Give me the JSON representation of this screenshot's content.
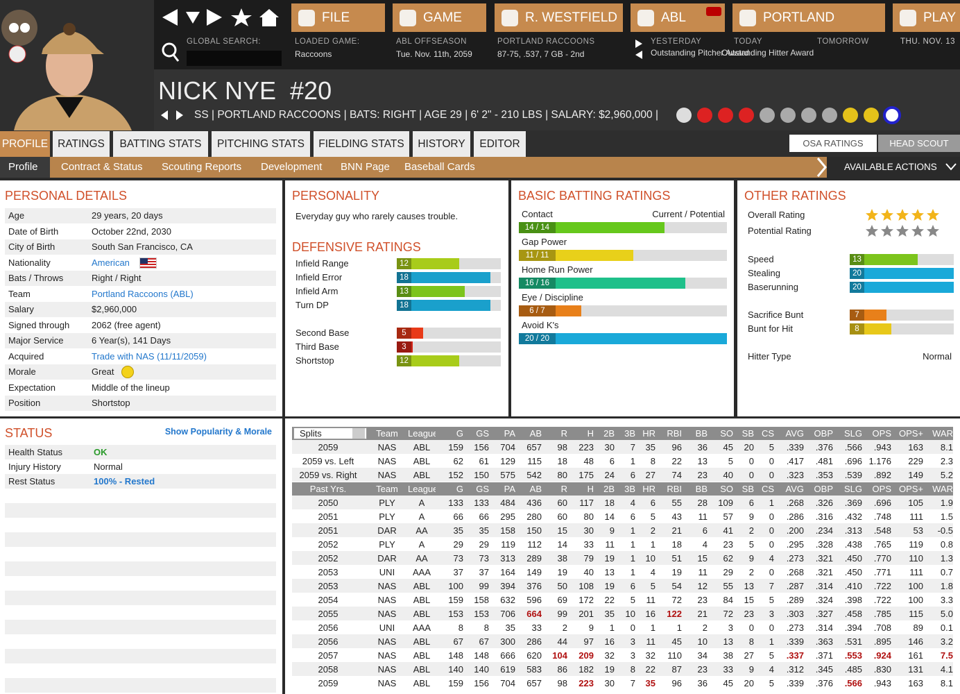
{
  "header": {
    "nav_buttons": [
      "FILE",
      "GAME",
      "R. WESTFIELD",
      "ABL",
      "PORTLAND",
      "PLAY"
    ],
    "global_search": "GLOBAL SEARCH:",
    "info": [
      {
        "label": "LOADED GAME:",
        "value": "Raccoons"
      },
      {
        "label": "ABL OFFSEASON",
        "value": "Tue. Nov. 11th, 2059"
      },
      {
        "label": "PORTLAND RACCOONS",
        "value": "87-75, .537, 7 GB - 2nd"
      }
    ],
    "events": [
      {
        "label": "YESTERDAY",
        "value": "Outstanding Pitcher Award"
      },
      {
        "label": "TODAY",
        "value": "Outstanding Hitter Award"
      },
      {
        "label": "TOMORROW"
      }
    ],
    "date": "THU. NOV. 13"
  },
  "player": {
    "name": "NICK NYE  #20",
    "info": "SS | PORTLAND RACCOONS | BATS: RIGHT | AGE 29 | 6' 2\" - 210 LBS | SALARY: $2,960,000 |"
  },
  "tabs": [
    "PROFILE",
    "RATINGS",
    "BATTING STATS",
    "PITCHING STATS",
    "FIELDING STATS",
    "HISTORY",
    "EDITOR"
  ],
  "right_tabs": [
    "OSA RATINGS",
    "HEAD SCOUT"
  ],
  "subnav": [
    "Profile",
    "Contract & Status",
    "Scouting Reports",
    "Development",
    "BNN Page",
    "Baseball Cards"
  ],
  "actions": "AVAILABLE ACTIONS",
  "personal": {
    "title": "PERSONAL DETAILS",
    "rows": [
      {
        "label": "Age",
        "value": "29 years, 20 days"
      },
      {
        "label": "Date of Birth",
        "value": "October 22nd, 2030"
      },
      {
        "label": "City of Birth",
        "value": "South San Francisco, CA"
      },
      {
        "label": "Nationality",
        "value": "American",
        "style": "link"
      },
      {
        "label": "Bats / Throws",
        "value": "Right / Right"
      },
      {
        "label": "Team",
        "value": "Portland Raccoons (ABL)",
        "style": "link"
      },
      {
        "label": "Salary",
        "value": "$2,960,000"
      },
      {
        "label": "Signed through",
        "value": "2062 (free agent)"
      },
      {
        "label": "Major Service",
        "value": "6 Year(s), 141 Days"
      },
      {
        "label": "Acquired",
        "value": "Trade with NAS (11/11/2059)",
        "style": "link"
      },
      {
        "label": "Morale",
        "value": "Great"
      },
      {
        "label": "Expectation",
        "value": "Middle of the lineup"
      },
      {
        "label": "Position",
        "value": "Shortstop"
      }
    ]
  },
  "personality": {
    "title": "PERSONALITY",
    "text": "Everyday guy who rarely causes trouble."
  },
  "defensive": {
    "title": "DEFENSIVE RATINGS",
    "groups": [
      [
        {
          "label": "Infield Range",
          "value": 12,
          "color": "#a8cc1a"
        },
        {
          "label": "Infield Error",
          "value": 18,
          "color": "#1aa0cc"
        },
        {
          "label": "Infield Arm",
          "value": 13,
          "color": "#7cc41c"
        },
        {
          "label": "Turn DP",
          "value": 18,
          "color": "#1aa0cc"
        }
      ],
      [
        {
          "label": "Second Base",
          "value": 5,
          "color": "#e83a18"
        },
        {
          "label": "Third Base",
          "value": 3,
          "color": "#d42418"
        },
        {
          "label": "Shortstop",
          "value": 12,
          "color": "#a8cc1a"
        }
      ]
    ]
  },
  "batting": {
    "title": "BASIC BATTING RATINGS",
    "header": "Current / Potential",
    "rows": [
      {
        "label": "Contact",
        "value": 14,
        "text": "14 / 14",
        "color": "#66c81c"
      },
      {
        "label": "Gap Power",
        "value": 11,
        "text": "11 / 11",
        "color": "#e8d01a"
      },
      {
        "label": "Home Run Power",
        "value": 16,
        "text": "16 / 16",
        "color": "#1ec08a"
      },
      {
        "label": "Eye / Discipline",
        "value": 6,
        "text": "6 / 7",
        "color": "#e8801a"
      },
      {
        "label": "Avoid K's",
        "value": 20,
        "text": "20 / 20",
        "color": "#1aa9d9"
      }
    ]
  },
  "other": {
    "title": "OTHER RATINGS",
    "overall": "Overall Rating",
    "potential": "Potential Rating",
    "groups": [
      [
        {
          "label": "Speed",
          "value": 13,
          "color": "#7cc41c"
        },
        {
          "label": "Stealing",
          "value": 20,
          "color": "#1aa9d9"
        },
        {
          "label": "Baserunning",
          "value": 20,
          "color": "#1aa9d9"
        }
      ],
      [
        {
          "label": "Sacrifice Bunt",
          "value": 7,
          "color": "#e8801a"
        },
        {
          "label": "Bunt for Hit",
          "value": 8,
          "color": "#e8c81a"
        }
      ]
    ],
    "hitter_type": {
      "label": "Hitter Type",
      "value": "Normal"
    }
  },
  "status": {
    "title": "STATUS",
    "link": "Show Popularity & Morale",
    "rows": [
      {
        "label": "Health Status",
        "value": "OK",
        "style": "ok"
      },
      {
        "label": "Injury History",
        "value": "Normal"
      },
      {
        "label": "Rest Status",
        "value": "100% - Rested",
        "style": "link"
      }
    ]
  },
  "table": {
    "columns": [
      "Splits",
      "Team",
      "League",
      "G",
      "GS",
      "PA",
      "AB",
      "R",
      "H",
      "2B",
      "3B",
      "HR",
      "RBI",
      "BB",
      "SO",
      "SB",
      "CS",
      "AVG",
      "OBP",
      "SLG",
      "OPS",
      "OPS+",
      "WAR"
    ],
    "past_header": "Past Yrs.",
    "split_rows": [
      {
        "cells": [
          "2059",
          "NAS",
          "ABL",
          "159",
          "156",
          "704",
          "657",
          "98",
          "223",
          "30",
          "7",
          "35",
          "96",
          "36",
          "45",
          "20",
          "5",
          ".339",
          ".376",
          ".566",
          ".943",
          "163",
          "8.1"
        ]
      },
      {
        "cells": [
          "2059 vs. Left",
          "NAS",
          "ABL",
          "62",
          "61",
          "129",
          "115",
          "18",
          "48",
          "6",
          "1",
          "8",
          "22",
          "13",
          "5",
          "0",
          "0",
          ".417",
          ".481",
          ".696",
          "1.176",
          "229",
          "2.3"
        ]
      },
      {
        "cells": [
          "2059 vs. Right",
          "NAS",
          "ABL",
          "152",
          "150",
          "575",
          "542",
          "80",
          "175",
          "24",
          "6",
          "27",
          "74",
          "23",
          "40",
          "0",
          "0",
          ".323",
          ".353",
          ".539",
          ".892",
          "149",
          "5.2"
        ]
      }
    ],
    "past_rows": [
      {
        "cells": [
          "2050",
          "PLY",
          "A",
          "133",
          "133",
          "484",
          "436",
          "60",
          "117",
          "18",
          "4",
          "6",
          "55",
          "28",
          "109",
          "6",
          "1",
          ".268",
          ".326",
          ".369",
          ".696",
          "105",
          "1.9"
        ]
      },
      {
        "cells": [
          "2051",
          "PLY",
          "A",
          "66",
          "66",
          "295",
          "280",
          "60",
          "80",
          "14",
          "6",
          "5",
          "43",
          "11",
          "57",
          "9",
          "0",
          ".286",
          ".316",
          ".432",
          ".748",
          "111",
          "1.5"
        ]
      },
      {
        "cells": [
          "2051",
          "DAR",
          "AA",
          "35",
          "35",
          "158",
          "150",
          "15",
          "30",
          "9",
          "1",
          "2",
          "21",
          "6",
          "41",
          "2",
          "0",
          ".200",
          ".234",
          ".313",
          ".548",
          "53",
          "-0.5"
        ]
      },
      {
        "cells": [
          "2052",
          "PLY",
          "A",
          "29",
          "29",
          "119",
          "112",
          "14",
          "33",
          "11",
          "1",
          "1",
          "18",
          "4",
          "23",
          "5",
          "0",
          ".295",
          ".328",
          ".438",
          ".765",
          "119",
          "0.8"
        ]
      },
      {
        "cells": [
          "2052",
          "DAR",
          "AA",
          "73",
          "73",
          "313",
          "289",
          "38",
          "79",
          "19",
          "1",
          "10",
          "51",
          "15",
          "62",
          "9",
          "4",
          ".273",
          ".321",
          ".450",
          ".770",
          "110",
          "1.3"
        ]
      },
      {
        "cells": [
          "2053",
          "UNI",
          "AAA",
          "37",
          "37",
          "164",
          "149",
          "19",
          "40",
          "13",
          "1",
          "4",
          "19",
          "11",
          "29",
          "2",
          "0",
          ".268",
          ".321",
          ".450",
          ".771",
          "111",
          "0.7"
        ]
      },
      {
        "cells": [
          "2053",
          "NAS",
          "ABL",
          "100",
          "99",
          "394",
          "376",
          "50",
          "108",
          "19",
          "6",
          "5",
          "54",
          "12",
          "55",
          "13",
          "7",
          ".287",
          ".314",
          ".410",
          ".722",
          "100",
          "1.8"
        ]
      },
      {
        "cells": [
          "2054",
          "NAS",
          "ABL",
          "159",
          "158",
          "632",
          "596",
          "69",
          "172",
          "22",
          "5",
          "11",
          "72",
          "23",
          "84",
          "15",
          "5",
          ".289",
          ".324",
          ".398",
          ".722",
          "100",
          "3.3"
        ]
      },
      {
        "cells": [
          "2055",
          "NAS",
          "ABL",
          "153",
          "153",
          "706",
          "664",
          "99",
          "201",
          "35",
          "10",
          "16",
          "122",
          "21",
          "72",
          "23",
          "3",
          ".303",
          ".327",
          ".458",
          ".785",
          "115",
          "5.0"
        ],
        "highlight": [
          6,
          12
        ]
      },
      {
        "cells": [
          "2056",
          "UNI",
          "AAA",
          "8",
          "8",
          "35",
          "33",
          "2",
          "9",
          "1",
          "0",
          "1",
          "1",
          "2",
          "3",
          "0",
          "0",
          ".273",
          ".314",
          ".394",
          ".708",
          "89",
          "0.1"
        ]
      },
      {
        "cells": [
          "2056",
          "NAS",
          "ABL",
          "67",
          "67",
          "300",
          "286",
          "44",
          "97",
          "16",
          "3",
          "11",
          "45",
          "10",
          "13",
          "8",
          "1",
          ".339",
          ".363",
          ".531",
          ".895",
          "146",
          "3.2"
        ]
      },
      {
        "cells": [
          "2057",
          "NAS",
          "ABL",
          "148",
          "148",
          "666",
          "620",
          "104",
          "209",
          "32",
          "3",
          "32",
          "110",
          "34",
          "38",
          "27",
          "5",
          ".337",
          ".371",
          ".553",
          ".924",
          "161",
          "7.5"
        ],
        "highlight": [
          7,
          8,
          17,
          19,
          20,
          22
        ]
      },
      {
        "cells": [
          "2058",
          "NAS",
          "ABL",
          "140",
          "140",
          "619",
          "583",
          "86",
          "182",
          "19",
          "8",
          "22",
          "87",
          "23",
          "33",
          "9",
          "4",
          ".312",
          ".345",
          ".485",
          ".830",
          "131",
          "4.1"
        ]
      },
      {
        "cells": [
          "2059",
          "NAS",
          "ABL",
          "159",
          "156",
          "704",
          "657",
          "98",
          "223",
          "30",
          "7",
          "35",
          "96",
          "36",
          "45",
          "20",
          "5",
          ".339",
          ".376",
          ".566",
          ".943",
          "163",
          "8.1"
        ],
        "highlight": [
          8,
          11,
          19
        ]
      }
    ]
  }
}
